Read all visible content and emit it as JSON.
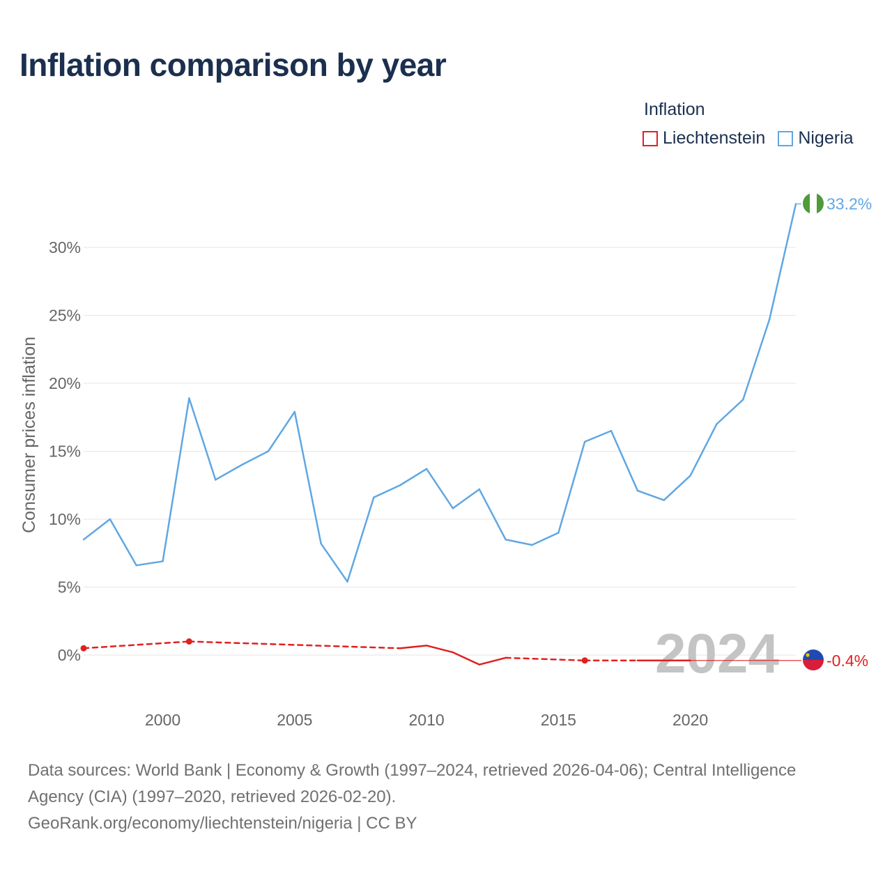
{
  "chart_data": {
    "type": "line",
    "title": "Inflation comparison by year",
    "ylabel": "Consumer prices inflation",
    "xlabel": "",
    "legend_title": "Inflation",
    "legend_position": "top-right",
    "xlim": [
      1997,
      2024
    ],
    "ylim": [
      -3.5,
      34
    ],
    "x_ticks": [
      2000,
      2005,
      2010,
      2015,
      2020
    ],
    "x_tick_labels": [
      "2000",
      "2005",
      "2010",
      "2015",
      "2020"
    ],
    "y_ticks": [
      0,
      5,
      10,
      15,
      20,
      25,
      30
    ],
    "y_tick_labels": [
      "0%",
      "5%",
      "10%",
      "15%",
      "20%",
      "25%",
      "30%"
    ],
    "year_label": "2024",
    "series": [
      {
        "name": "Liechtenstein",
        "color": "#e02020",
        "end_label": "-0.4%",
        "points": [
          {
            "x": 1997,
            "y": 0.5,
            "marker": true
          },
          {
            "x": 2001,
            "y": 1.0,
            "marker": true
          },
          {
            "x": 2009,
            "y": 0.5
          },
          {
            "x": 2010,
            "y": 0.7
          },
          {
            "x": 2011,
            "y": 0.2
          },
          {
            "x": 2012,
            "y": -0.7
          },
          {
            "x": 2013,
            "y": -0.2
          },
          {
            "x": 2016,
            "y": -0.4,
            "marker": true
          },
          {
            "x": 2018,
            "y": -0.4
          },
          {
            "x": 2019,
            "y": -0.4
          },
          {
            "x": 2020,
            "y": -0.4
          }
        ],
        "dashed_segments": [
          [
            1997,
            2009
          ],
          [
            2013,
            2018
          ]
        ]
      },
      {
        "name": "Nigeria",
        "color": "#5fa7e3",
        "end_label": "33.2%",
        "points": [
          {
            "x": 1997,
            "y": 8.5
          },
          {
            "x": 1998,
            "y": 10.0
          },
          {
            "x": 1999,
            "y": 6.6
          },
          {
            "x": 2000,
            "y": 6.9
          },
          {
            "x": 2001,
            "y": 18.9
          },
          {
            "x": 2002,
            "y": 12.9
          },
          {
            "x": 2003,
            "y": 14.0
          },
          {
            "x": 2004,
            "y": 15.0
          },
          {
            "x": 2005,
            "y": 17.9
          },
          {
            "x": 2006,
            "y": 8.2
          },
          {
            "x": 2007,
            "y": 5.4
          },
          {
            "x": 2008,
            "y": 11.6
          },
          {
            "x": 2009,
            "y": 12.5
          },
          {
            "x": 2010,
            "y": 13.7
          },
          {
            "x": 2011,
            "y": 10.8
          },
          {
            "x": 2012,
            "y": 12.2
          },
          {
            "x": 2013,
            "y": 8.5
          },
          {
            "x": 2014,
            "y": 8.1
          },
          {
            "x": 2015,
            "y": 9.0
          },
          {
            "x": 2016,
            "y": 15.7
          },
          {
            "x": 2017,
            "y": 16.5
          },
          {
            "x": 2018,
            "y": 12.1
          },
          {
            "x": 2019,
            "y": 11.4
          },
          {
            "x": 2020,
            "y": 13.2
          },
          {
            "x": 2021,
            "y": 17.0
          },
          {
            "x": 2022,
            "y": 18.8
          },
          {
            "x": 2023,
            "y": 24.7
          },
          {
            "x": 2024,
            "y": 33.2
          }
        ]
      }
    ]
  },
  "footer": {
    "line1": "Data sources: World Bank | Economy & Growth (1997–2024, retrieved 2026-04-06); Central Intelligence",
    "line2": "Agency (CIA) (1997–2020, retrieved 2026-02-20).",
    "line3": "GeoRank.org/economy/liechtenstein/nigeria | CC BY"
  },
  "icons": {
    "liechtenstein_flag": "liechtenstein-flag-icon",
    "nigeria_flag": "nigeria-flag-icon"
  }
}
